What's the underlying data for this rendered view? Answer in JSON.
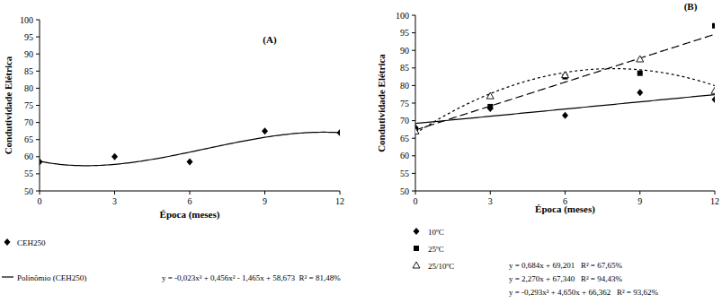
{
  "chart_data": [
    {
      "type": "scatter",
      "title": "(A)",
      "x_label": "Época (meses)",
      "y_label": "Condutividade Elétrica",
      "x": [
        0,
        3,
        6,
        9,
        12
      ],
      "xlim": [
        0,
        12
      ],
      "xticks": [
        0,
        3,
        6,
        9,
        12
      ],
      "ylim": [
        50,
        100
      ],
      "yticks": [
        50,
        55,
        60,
        65,
        70,
        75,
        80,
        85,
        90,
        95,
        100
      ],
      "grid": false,
      "series": [
        {
          "name": "CEH250",
          "color": "#000000",
          "marker": "diamond",
          "values": [
            58.5,
            60,
            58.5,
            67.5,
            67
          ],
          "trendline": {
            "name": "Polinômio (CEH250)",
            "line_style": "solid",
            "coefficients": [
              -0.023,
              0.456,
              -1.465,
              58.673
            ],
            "equation": "y = -0,023x³ + 0,456x² - 1,465x + 58,673  R² = 81,48%"
          }
        }
      ]
    },
    {
      "type": "scatter",
      "title": "(B)",
      "x_label": "Época (meses)",
      "y_label": "Condutividade Elétrica",
      "x": [
        0,
        3,
        6,
        9,
        12
      ],
      "xlim": [
        0,
        12
      ],
      "xticks": [
        0,
        3,
        6,
        9,
        12
      ],
      "ylim": [
        50,
        100
      ],
      "yticks": [
        50,
        55,
        60,
        65,
        70,
        75,
        80,
        85,
        90,
        95,
        100
      ],
      "grid": false,
      "series": [
        {
          "name": "10ºC",
          "color": "#000000",
          "marker": "diamond",
          "values": [
            68,
            73.5,
            71.5,
            78,
            76
          ],
          "trendline": {
            "line_style": "solid",
            "coefficients": [
              0.684,
              69.201
            ],
            "equation": "y = 0,684x + 69,201   R² = 67,65%"
          }
        },
        {
          "name": "25ºC",
          "color": "#000000",
          "marker": "square",
          "values": [
            67.5,
            74,
            82.5,
            83.5,
            97
          ],
          "trendline": {
            "line_style": "dashed",
            "coefficients": [
              2.27,
              67.34
            ],
            "equation": "y = 2,270x + 67,340   R² = 94,43%"
          }
        },
        {
          "name": "25/10ºC",
          "color": "#000000",
          "marker": "open-triangle",
          "values": [
            67,
            77,
            83,
            87.5,
            78.5
          ],
          "trendline": {
            "line_style": "dotted",
            "coefficients": [
              -0.293,
              4.65,
              66.362
            ],
            "equation": "y = -0,293x² + 4,650x + 66,362   R² = 93,62%"
          }
        }
      ]
    }
  ]
}
